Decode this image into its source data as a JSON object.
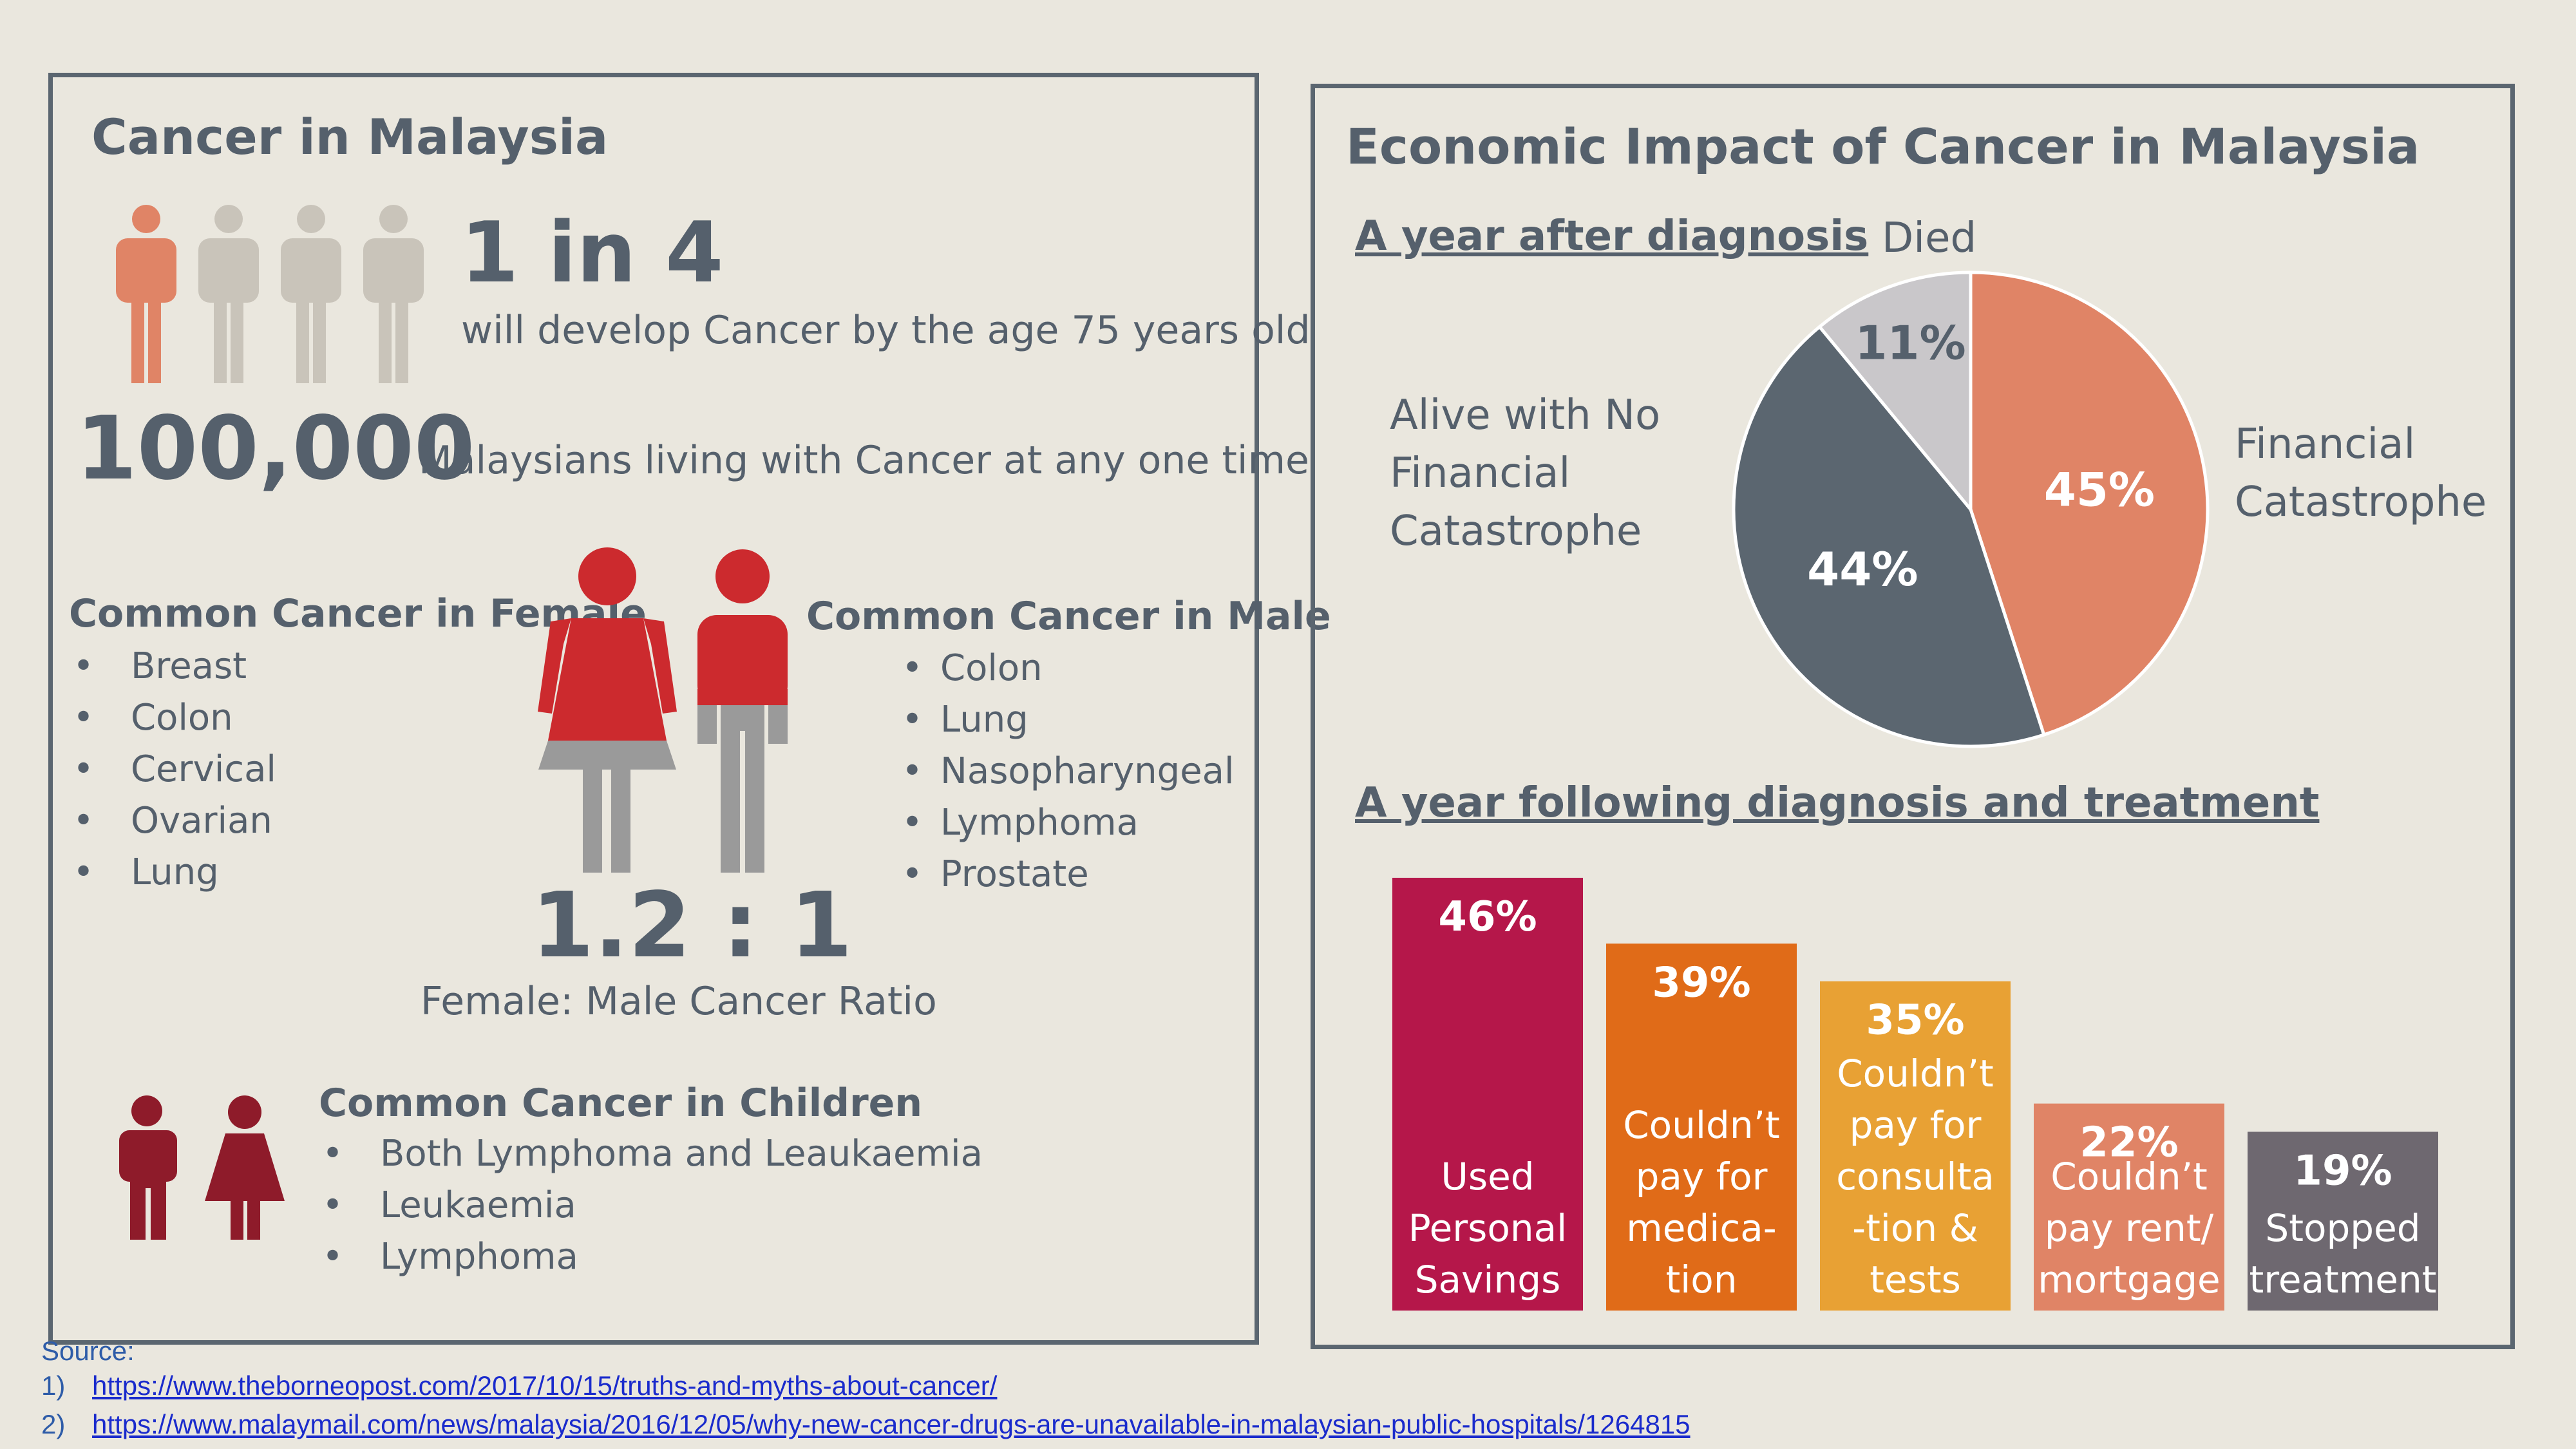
{
  "left": {
    "title": "Cancer in Malaysia",
    "stat1_value": "1 in 4",
    "stat1_text": "will develop Cancer by the age 75 years old",
    "stat2_value": "100,000",
    "stat2_text": "Malaysians living with Cancer at any one time",
    "female_heading": "Common Cancer in Female",
    "female_list": [
      "Breast",
      "Colon",
      "Cervical",
      "Ovarian",
      "Lung"
    ],
    "male_heading": "Common Cancer in Male",
    "male_list": [
      "Colon",
      "Lung",
      "Nasopharyngeal",
      "Lymphoma",
      "Prostate"
    ],
    "ratio_value": "1.2 : 1",
    "ratio_text": "Female: Male Cancer Ratio",
    "children_heading": "Common Cancer in Children",
    "children_list": [
      "Both Lymphoma and Leaukaemia",
      "Leukaemia",
      "Lymphoma"
    ],
    "icons": [
      "person-icon",
      "woman-icon",
      "man-icon",
      "boy-icon",
      "girl-icon"
    ]
  },
  "right": {
    "title": "Economic Impact of Cancer in Malaysia",
    "pie_heading": "A year after diagnosis",
    "bar_heading": "A year following diagnosis and treatment"
  },
  "colors": {
    "accent_orange": "#E08466",
    "slate": "#5B6670",
    "light_grey": "#C9C7CA",
    "red": "#CC2A2E",
    "maroon": "#8E1B2A"
  },
  "chart_data": [
    {
      "type": "pie",
      "title": "A year after diagnosis",
      "slices": [
        {
          "label": "Financial Catastrophe",
          "value": 45,
          "display": "45%",
          "color": "#E08466"
        },
        {
          "label": "Alive with No Financial Catastrophe",
          "value": 44,
          "display": "44%",
          "color": "#5B6670"
        },
        {
          "label": "Died",
          "value": 11,
          "display": "11%",
          "color": "#C9C7CA"
        }
      ]
    },
    {
      "type": "bar",
      "title": "A year following diagnosis and treatment",
      "categories": [
        "Used Personal Savings",
        "Couldn’t pay for medica-tion",
        "Couldn’t pay for consulta-tion & tests",
        "Couldn’t pay rent/ mortgage",
        "Stopped treatment"
      ],
      "values": [
        46,
        39,
        35,
        22,
        19
      ],
      "value_labels": [
        "46%",
        "39%",
        "35%",
        "22%",
        "19%"
      ],
      "colors": [
        "#B5174A",
        "#E06B18",
        "#E8A134",
        "#E08466",
        "#6E6870"
      ],
      "label_lines": [
        [
          "Used",
          "Personal",
          "Savings"
        ],
        [
          "Couldn’t",
          "pay for",
          "medica-",
          "tion"
        ],
        [
          "Couldn’t",
          "pay for",
          "consulta",
          "-tion &",
          "tests"
        ],
        [
          "Couldn’t",
          "pay rent/",
          "mortgage"
        ],
        [
          "Stopped",
          "treatment"
        ]
      ]
    }
  ],
  "sources": {
    "heading": "Source:",
    "items": [
      {
        "num": "1)",
        "text": "https://www.theborneopost.com/2017/10/15/truths-and-myths-about-cancer/"
      },
      {
        "num": "2)",
        "text": "https://www.malaymail.com/news/malaysia/2016/12/05/why-new-cancer-drugs-are-unavailable-in-malaysian-public-hospitals/1264815"
      }
    ]
  }
}
